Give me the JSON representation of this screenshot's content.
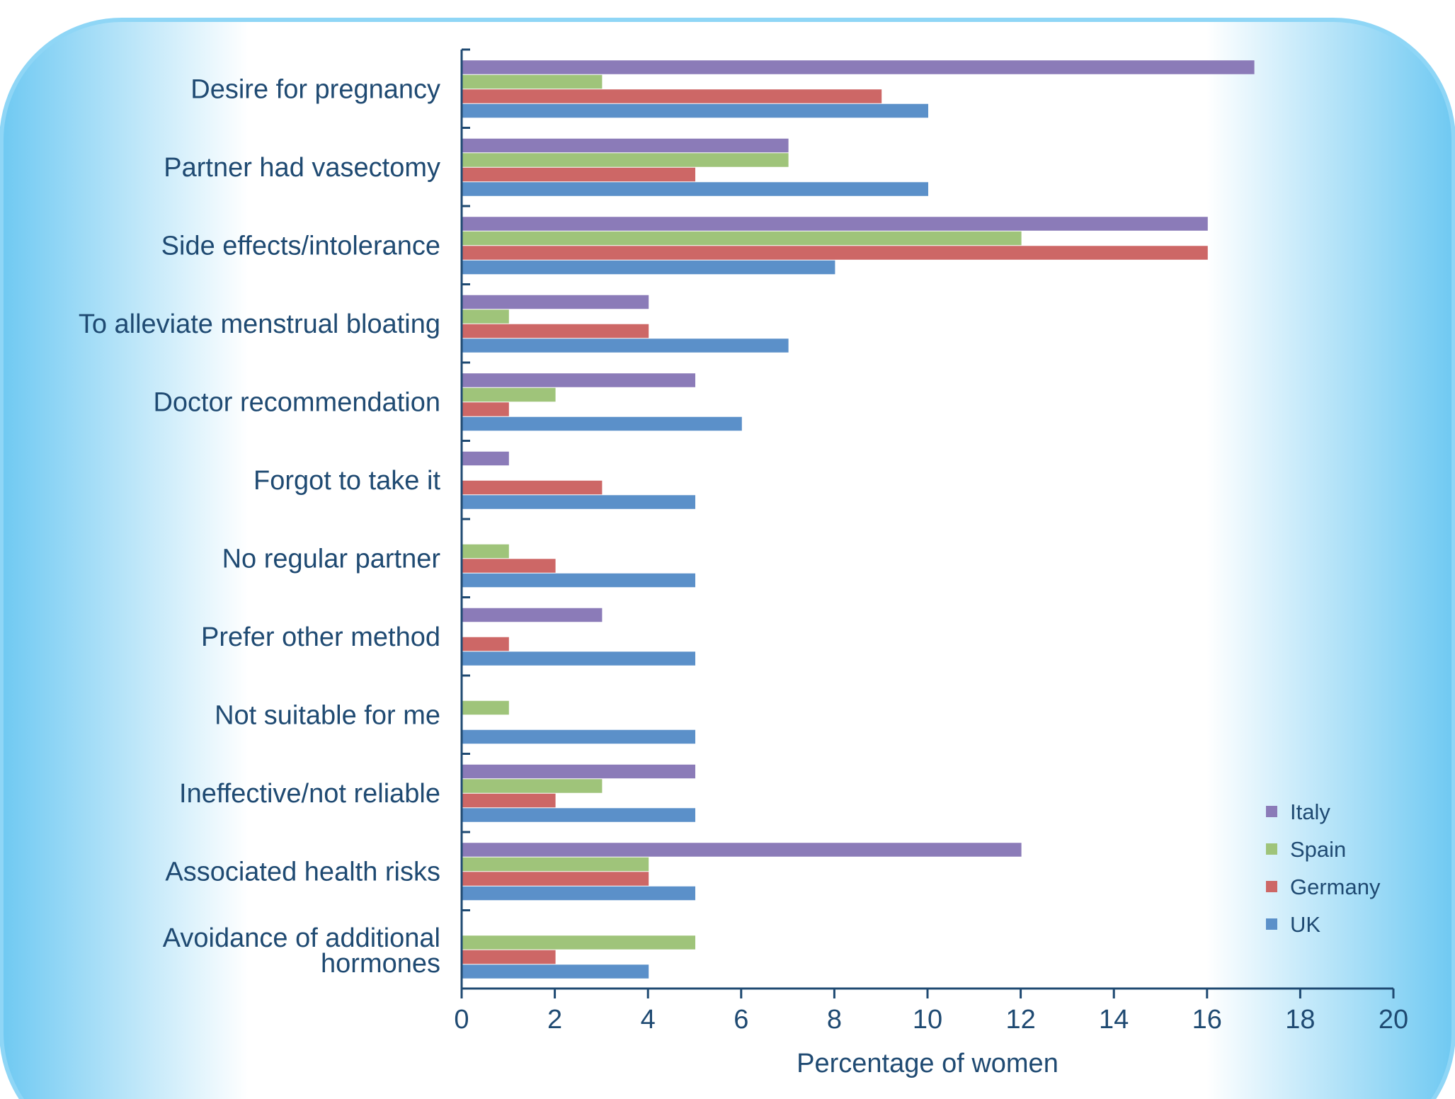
{
  "chart_data": {
    "type": "bar",
    "orientation": "horizontal",
    "categories": [
      "Desire for pregnancy",
      "Partner had vasectomy",
      "Side effects/intolerance",
      "To alleviate menstrual bloating",
      "Doctor recommendation",
      "Forgot to take it",
      "No regular partner",
      "Prefer other method",
      "Not suitable for me",
      "Ineffective/not reliable",
      "Associated health risks",
      "Avoidance of additional hormones"
    ],
    "series": [
      {
        "name": "Italy",
        "color": "#8b7bb8",
        "values": [
          17,
          7,
          16,
          4,
          5,
          1,
          0,
          3,
          0,
          5,
          12,
          0
        ]
      },
      {
        "name": "Spain",
        "color": "#9fc47a",
        "values": [
          3,
          7,
          12,
          1,
          2,
          0,
          1,
          0,
          1,
          3,
          4,
          5
        ]
      },
      {
        "name": "Germany",
        "color": "#cd6766",
        "values": [
          9,
          5,
          16,
          4,
          1,
          3,
          2,
          1,
          0,
          2,
          4,
          2
        ]
      },
      {
        "name": "UK",
        "color": "#5b90c9",
        "values": [
          10,
          10,
          8,
          7,
          6,
          5,
          5,
          5,
          5,
          5,
          5,
          4
        ]
      }
    ],
    "xlabel": "Percentage of women",
    "ylabel": "",
    "xlim": [
      0,
      20
    ],
    "xticks": [
      "0",
      "2",
      "4",
      "6",
      "8",
      "10",
      "12",
      "14",
      "16",
      "18",
      "20"
    ],
    "grid": false,
    "legend_position": "bottom-right"
  },
  "colors": {
    "frame": "#7fd0f4",
    "axis": "#1f4a72",
    "text": "#1f4a72"
  }
}
